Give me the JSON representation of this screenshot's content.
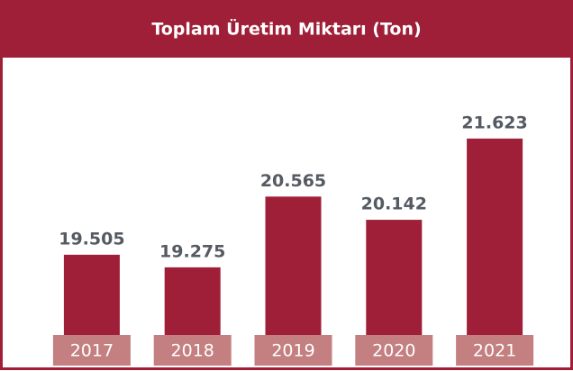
{
  "chart_data": {
    "type": "bar",
    "title": "Toplam Üretim Miktarı (Ton)",
    "categories": [
      "2017",
      "2018",
      "2019",
      "2020",
      "2021"
    ],
    "values": [
      19505,
      19275,
      20565,
      20142,
      21623
    ],
    "value_labels": [
      "19.505",
      "19.275",
      "20.565",
      "20.142",
      "21.623"
    ],
    "color": "#9e1f37",
    "ylim": [
      17500,
      23000
    ]
  }
}
